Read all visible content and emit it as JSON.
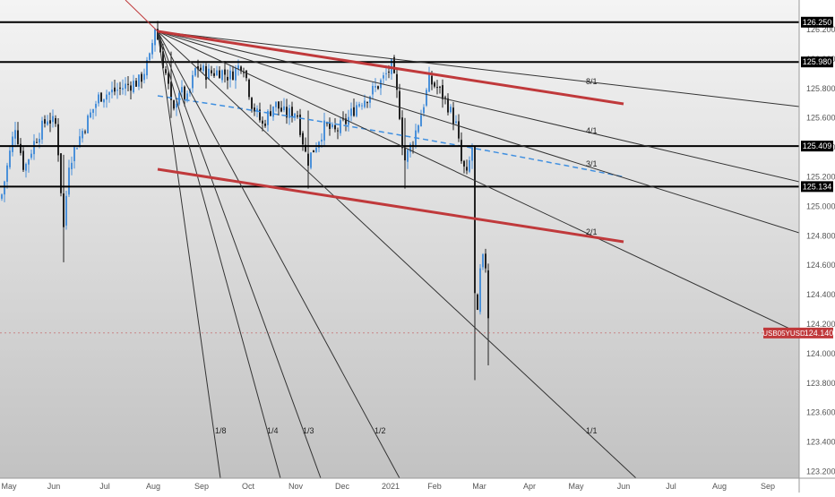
{
  "chart_data": {
    "type": "candlestick",
    "symbol": "USB05YUSD",
    "last_price": "124.140",
    "x_tick_labels": [
      "May",
      "Jun",
      "Jul",
      "Aug",
      "Sep",
      "Oct",
      "Nov",
      "Dec",
      "2021",
      "Feb",
      "Mar",
      "Apr",
      "May",
      "Jun",
      "Jul",
      "Aug",
      "Sep"
    ],
    "y_tick_labels": [
      "126.400",
      "126.200",
      "126.000",
      "125.800",
      "125.600",
      "125.400",
      "125.200",
      "125.000",
      "124.800",
      "124.600",
      "124.400",
      "124.200",
      "124.000",
      "123.800",
      "123.600",
      "123.400",
      "123.200"
    ],
    "ylim": [
      123.17,
      126.47
    ],
    "horizontal_levels": [
      "126.250",
      "125.980",
      "125.409",
      "125.134"
    ],
    "fan_ratios": [
      "8/1",
      "4/1",
      "3/1",
      "2/1",
      "1/1",
      "1/2",
      "1/3",
      "1/4",
      "1/8"
    ],
    "channel_lines": [
      "upper",
      "lower"
    ],
    "moving_average": "dashed-blue",
    "colors": {
      "background_top": "#f4f4f4",
      "background_bottom": "#c2c2c2",
      "candle_up": "#4a90d9",
      "candle_down": "#222222",
      "channel_line": "#c0393b",
      "moving_average": "#3f8fe0",
      "level_line": "#000000",
      "fan_line": "#333333",
      "current_price_marker": "#c0393b"
    }
  }
}
